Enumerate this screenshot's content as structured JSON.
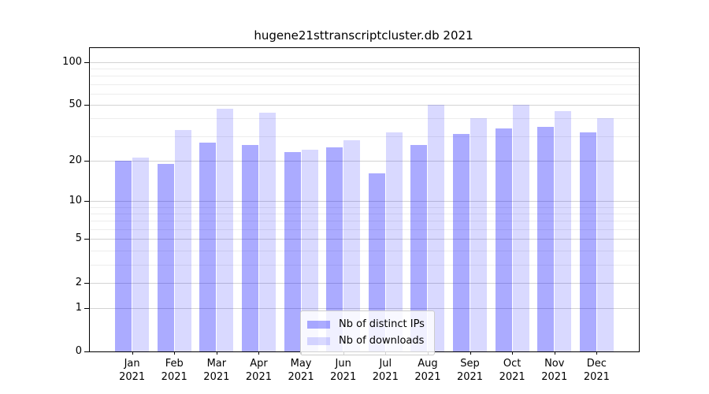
{
  "title": "hugene21sttranscriptcluster.db 2021",
  "chart_data": {
    "type": "bar",
    "title": "hugene21sttranscriptcluster.db 2021",
    "categories": [
      "Jan",
      "Feb",
      "Mar",
      "Apr",
      "May",
      "Jun",
      "Jul",
      "Aug",
      "Sep",
      "Oct",
      "Nov",
      "Dec"
    ],
    "year_label": "2021",
    "series": [
      {
        "name": "Nb of distinct IPs",
        "color": "rgba(0,0,255,0.33)",
        "values": [
          20,
          19,
          27,
          26,
          23,
          25,
          16,
          26,
          31,
          34,
          35,
          32
        ]
      },
      {
        "name": "Nb of downloads",
        "color": "rgba(0,0,255,0.15)",
        "values": [
          21,
          33,
          47,
          44,
          24,
          28,
          32,
          50,
          40,
          50,
          45,
          40
        ]
      }
    ],
    "xlabel": "",
    "ylabel": "",
    "y_scale": "log10(1+v)",
    "ylim": [
      0,
      125
    ],
    "y_ticks": [
      100,
      50,
      20,
      10,
      5,
      2,
      1,
      0
    ],
    "y_minor_gridlines": [
      3,
      4,
      6,
      7,
      8,
      9,
      30,
      40,
      60,
      70,
      80,
      90
    ],
    "grid": "on",
    "legend_position": "bottom-center"
  },
  "colors": {
    "axis": "#000000",
    "grid_major": "#d3d3d3",
    "grid_minor": "#ededed",
    "legend_border": "#cccccc"
  }
}
